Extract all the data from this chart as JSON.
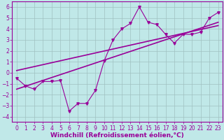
{
  "xlabel": "Windchill (Refroidissement éolien,°C)",
  "xlim": [
    -0.5,
    23.5
  ],
  "ylim": [
    -4.5,
    6.5
  ],
  "xticks": [
    0,
    1,
    2,
    3,
    4,
    5,
    6,
    7,
    8,
    9,
    10,
    11,
    12,
    13,
    14,
    15,
    16,
    17,
    18,
    19,
    20,
    21,
    22,
    23
  ],
  "yticks": [
    -4,
    -3,
    -2,
    -1,
    0,
    1,
    2,
    3,
    4,
    5,
    6
  ],
  "data_x": [
    0,
    1,
    2,
    3,
    4,
    5,
    6,
    7,
    8,
    9,
    10,
    11,
    12,
    13,
    14,
    15,
    16,
    17,
    18,
    19,
    20,
    21,
    22,
    23
  ],
  "data_y": [
    -0.5,
    -1.2,
    -1.5,
    -0.8,
    -0.8,
    -0.7,
    -3.5,
    -2.8,
    -2.8,
    -1.6,
    1.1,
    3.0,
    4.0,
    4.5,
    6.0,
    4.6,
    4.4,
    3.5,
    2.7,
    3.5,
    3.5,
    3.7,
    5.0,
    5.5
  ],
  "line1_x": [
    0,
    23
  ],
  "line1_y": [
    -1.5,
    4.6
  ],
  "line2_x": [
    0,
    23
  ],
  "line2_y": [
    0.2,
    4.3
  ],
  "color": "#990099",
  "bg_color": "#c0e8e8",
  "grid_color": "#a0c0c0",
  "tick_fontsize": 5.5,
  "xlabel_fontsize": 6.5,
  "marker_size": 2.5,
  "linewidth": 0.8
}
